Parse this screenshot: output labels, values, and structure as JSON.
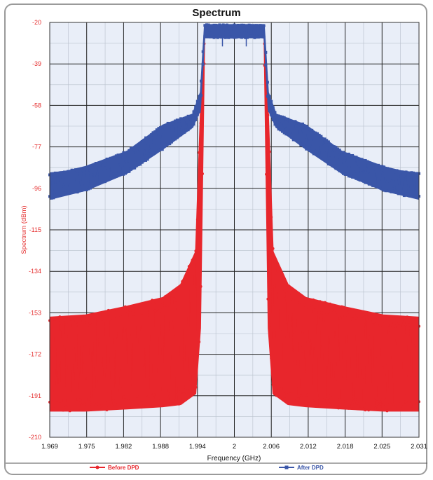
{
  "chart_data": {
    "type": "line",
    "title": "Spectrum",
    "xlabel": "Frequency (GHz)",
    "ylabel": "Spectrum (dBm)",
    "xlim": [
      1.969,
      2.031
    ],
    "ylim": [
      -210,
      -20
    ],
    "x_ticks": [
      "1.969",
      "1.975",
      "1.982",
      "1.988",
      "1.994",
      "2",
      "2.006",
      "2.012",
      "2.018",
      "2.025",
      "2.031"
    ],
    "y_ticks": [
      "-20",
      "-39",
      "-58",
      "-77",
      "-96",
      "-115",
      "-134",
      "-153",
      "-172",
      "-191",
      "-210"
    ],
    "grid": true,
    "legend_position": "bottom",
    "series": [
      {
        "name": "Before DPD",
        "color": "#e8262c",
        "description_points": {
          "x": [
            1.969,
            1.975,
            1.982,
            1.988,
            1.991,
            1.9935,
            1.9943,
            1.995,
            2.0,
            2.005,
            2.0057,
            2.0065,
            2.009,
            2.012,
            2.018,
            2.025,
            2.031
          ],
          "upper": [
            -155,
            -154,
            -150,
            -146,
            -140,
            -125,
            -62,
            -26,
            -26,
            -26,
            -62,
            -125,
            -140,
            -146,
            -150,
            -154,
            -155
          ],
          "lower": [
            -198,
            -198,
            -197,
            -196,
            -195,
            -190,
            -160,
            -26,
            -26,
            -26,
            -160,
            -190,
            -195,
            -196,
            -197,
            -198,
            -198
          ]
        }
      },
      {
        "name": "After DPD",
        "color": "#3a56a8",
        "description_points": {
          "x": [
            1.969,
            1.972,
            1.975,
            1.982,
            1.988,
            1.993,
            1.9943,
            1.995,
            2.0,
            2.005,
            2.0057,
            2.007,
            2.012,
            2.018,
            2.025,
            2.028,
            2.031
          ],
          "upper": [
            -89,
            -88,
            -86,
            -79,
            -67,
            -62,
            -52,
            -21,
            -21,
            -21,
            -52,
            -62,
            -67,
            -79,
            -86,
            -88,
            -89
          ],
          "lower": [
            -101,
            -99,
            -97,
            -89,
            -78,
            -68,
            -60,
            -27,
            -27,
            -27,
            -60,
            -68,
            -78,
            -89,
            -97,
            -99,
            -101
          ]
        }
      }
    ]
  }
}
